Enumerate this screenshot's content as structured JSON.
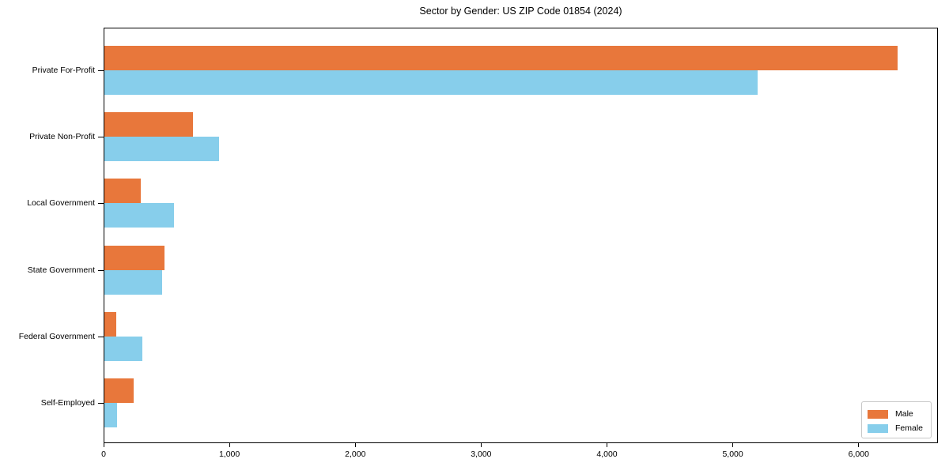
{
  "figure": {
    "background": "#ffffff",
    "axis_color": "#000000"
  },
  "chart_data": {
    "type": "bar",
    "orientation": "horizontal",
    "title": "Sector by Gender: US ZIP Code 01854 (2024)",
    "xlabel": "",
    "ylabel": "",
    "categories": [
      "Private For-Profit",
      "Private Non-Profit",
      "Local Government",
      "State Government",
      "Federal Government",
      "Self-Employed"
    ],
    "series": [
      {
        "name": "Male",
        "color": "#e8773b",
        "values": [
          6300,
          705,
          290,
          480,
          95,
          230
        ]
      },
      {
        "name": "Female",
        "color": "#87ceeb",
        "values": [
          5190,
          910,
          555,
          460,
          300,
          100
        ]
      }
    ],
    "xlim": [
      0,
      6630
    ],
    "xticks": [
      0,
      1000,
      2000,
      3000,
      4000,
      5000,
      6000
    ],
    "xtick_labels": [
      "0",
      "1,000",
      "2,000",
      "3,000",
      "4,000",
      "5,000",
      "6,000"
    ],
    "grid": false,
    "legend": {
      "position": "lower-right",
      "entries": [
        "Male",
        "Female"
      ]
    }
  }
}
